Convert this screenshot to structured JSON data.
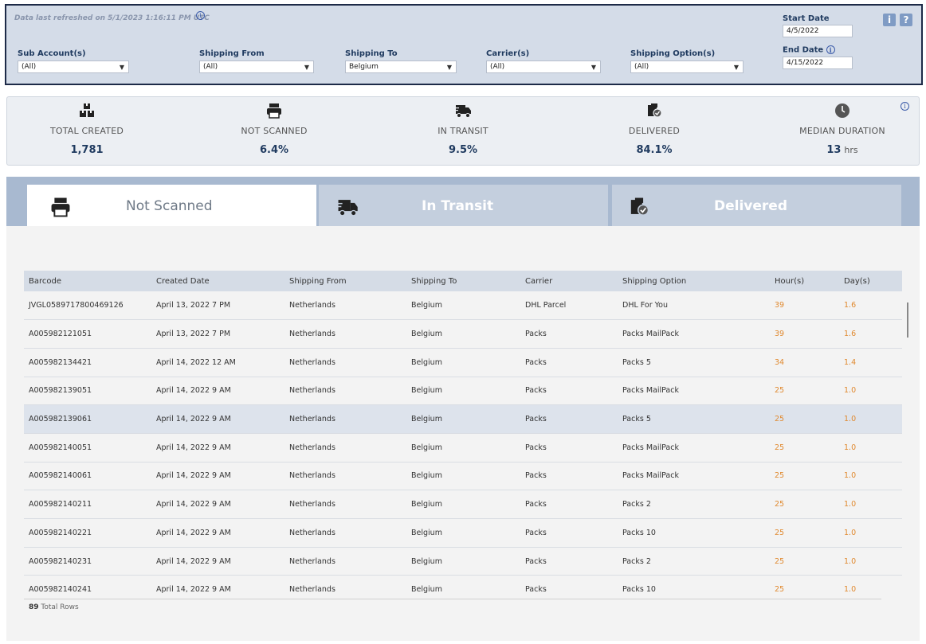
{
  "header": {
    "refresh_prefix": "Data last refreshed on ",
    "refresh_value": "5/1/2023 1:16:11 PM UTC",
    "info_glyph": "i",
    "help_info_label": "i",
    "help_question_label": "?"
  },
  "filters": [
    {
      "label": "Sub Account(s)",
      "value": "(All)"
    },
    {
      "label": "Shipping From",
      "value": "(All)"
    },
    {
      "label": "Shipping To",
      "value": "Belgium"
    },
    {
      "label": "Carrier(s)",
      "value": "(All)"
    },
    {
      "label": "Shipping Option(s)",
      "value": "(All)"
    }
  ],
  "dates": {
    "start_label": "Start Date",
    "start_value": "4/5/2022",
    "end_label": "End Date",
    "end_value": "4/15/2022"
  },
  "kpis": [
    {
      "label": "TOTAL CREATED",
      "value": "1,781",
      "icon": "boxes-icon"
    },
    {
      "label": "NOT SCANNED",
      "value": "6.4%",
      "icon": "printer-icon"
    },
    {
      "label": "IN TRANSIT",
      "value": "9.5%",
      "icon": "truck-icon"
    },
    {
      "label": "DELIVERED",
      "value": "84.1%",
      "icon": "delivered-box-icon"
    },
    {
      "label": "MEDIAN DURATION",
      "value": "13",
      "unit": "hrs",
      "icon": "clock-icon"
    }
  ],
  "tabs": [
    {
      "label": "Not Scanned",
      "active": true
    },
    {
      "label": "In Transit",
      "active": false
    },
    {
      "label": "Delivered",
      "active": false
    }
  ],
  "table": {
    "columns": [
      "Barcode",
      "Created Date",
      "Shipping From",
      "Shipping To",
      "Carrier",
      "Shipping Option",
      "Hour(s)",
      "Day(s)"
    ],
    "rows": [
      [
        "JVGL0589717800469126",
        "April 13, 2022 7 PM",
        "Netherlands",
        "Belgium",
        "DHL Parcel",
        "DHL For You",
        "39",
        "1.6"
      ],
      [
        "A005982121051",
        "April 13, 2022 7 PM",
        "Netherlands",
        "Belgium",
        "Packs",
        "Packs MailPack",
        "39",
        "1.6"
      ],
      [
        "A005982134421",
        "April 14, 2022 12 AM",
        "Netherlands",
        "Belgium",
        "Packs",
        "Packs 5",
        "34",
        "1.4"
      ],
      [
        "A005982139051",
        "April 14, 2022 9 AM",
        "Netherlands",
        "Belgium",
        "Packs",
        "Packs MailPack",
        "25",
        "1.0"
      ],
      [
        "A005982139061",
        "April 14, 2022 9 AM",
        "Netherlands",
        "Belgium",
        "Packs",
        "Packs 5",
        "25",
        "1.0"
      ],
      [
        "A005982140051",
        "April 14, 2022 9 AM",
        "Netherlands",
        "Belgium",
        "Packs",
        "Packs MailPack",
        "25",
        "1.0"
      ],
      [
        "A005982140061",
        "April 14, 2022 9 AM",
        "Netherlands",
        "Belgium",
        "Packs",
        "Packs MailPack",
        "25",
        "1.0"
      ],
      [
        "A005982140211",
        "April 14, 2022 9 AM",
        "Netherlands",
        "Belgium",
        "Packs",
        "Packs 2",
        "25",
        "1.0"
      ],
      [
        "A005982140221",
        "April 14, 2022 9 AM",
        "Netherlands",
        "Belgium",
        "Packs",
        "Packs 10",
        "25",
        "1.0"
      ],
      [
        "A005982140231",
        "April 14, 2022 9 AM",
        "Netherlands",
        "Belgium",
        "Packs",
        "Packs 2",
        "25",
        "1.0"
      ],
      [
        "A005982140241",
        "April 14, 2022 9 AM",
        "Netherlands",
        "Belgium",
        "Packs",
        "Packs 10",
        "25",
        "1.0"
      ]
    ],
    "highlight_row": 4,
    "total_rows_count": "89",
    "total_rows_label": "Total Rows"
  },
  "colors": {
    "accent_orange": "#e0892f",
    "header_navy": "#1f3a5f",
    "tab_bar": "#a8b9d0"
  }
}
